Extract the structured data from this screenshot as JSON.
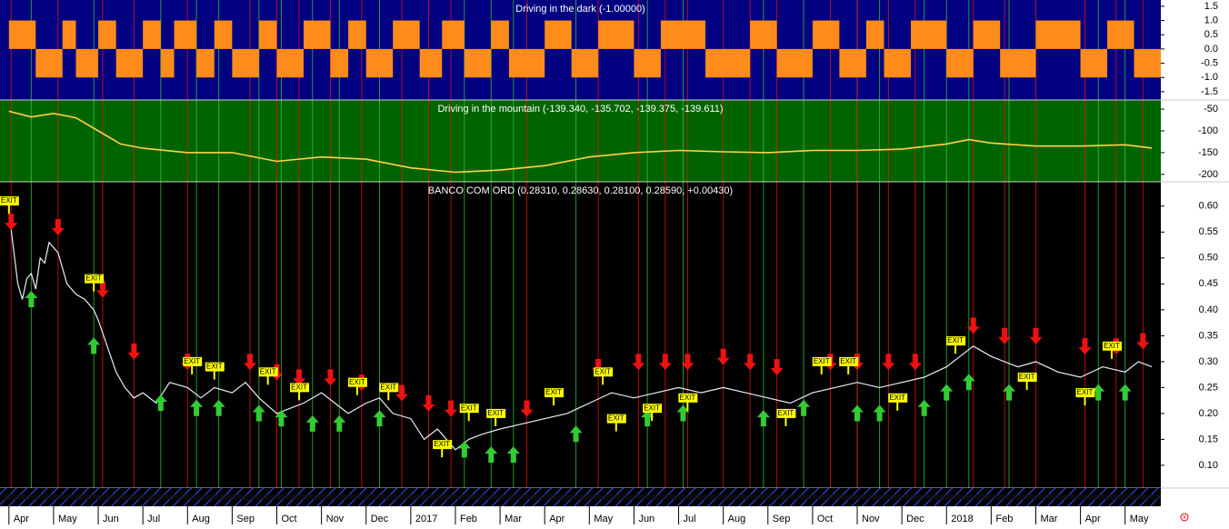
{
  "chart_data": [
    {
      "type": "step",
      "title": "Driving in the dark (-1.00000)",
      "background": "#000080",
      "color": "#ff8c1a",
      "xlim": [
        -0.2,
        25.8
      ],
      "ylim": [
        -1.79,
        1.72
      ],
      "yticks": [
        1.5,
        {
          "value": 1,
          "label": "1.0"
        },
        0.5,
        {
          "value": 0,
          "label": "0.0"
        },
        -0.5,
        {
          "value": -1,
          "label": "-1.0"
        },
        -1.5
      ],
      "x": [
        0,
        0.6,
        1.2,
        1.5,
        2.0,
        2.4,
        3.0,
        3.4,
        3.7,
        4.2,
        4.6,
        5.0,
        5.6,
        6.0,
        6.6,
        7.2,
        7.6,
        8.0,
        8.6,
        9.2,
        9.7,
        10.2,
        10.8,
        11.2,
        12.0,
        12.6,
        13.2,
        14.0,
        14.6,
        15.6,
        16.6,
        17.2,
        18.0,
        18.6,
        19.2,
        19.6,
        20.2,
        21.0,
        21.6,
        22.2,
        23.0,
        24.0,
        24.6,
        25.2
      ],
      "values": [
        1,
        -1,
        1,
        -1,
        1,
        -1,
        1,
        -1,
        1,
        -1,
        1,
        -1,
        1,
        -1,
        1,
        -1,
        1,
        -1,
        1,
        -1,
        1,
        -1,
        1,
        -1,
        1,
        -1,
        1,
        -1,
        1,
        -1,
        1,
        -1,
        1,
        -1,
        1,
        -1,
        1,
        -1,
        1,
        -1,
        1,
        -1,
        1,
        -1
      ]
    },
    {
      "type": "line",
      "title": "Driving in the mountain (-139.340, -135.702, -139.375, -139.611)",
      "background": "#006400",
      "color": "#ffd24d",
      "xlim": [
        -0.2,
        25.8
      ],
      "ylim": [
        -217,
        -29
      ],
      "yticks": [
        -50,
        -100,
        -150,
        -200
      ],
      "x": [
        0,
        0.5,
        1,
        1.5,
        2,
        2.5,
        3,
        4,
        5,
        6,
        7,
        8,
        9,
        10,
        11,
        12,
        13,
        14,
        15,
        16,
        17,
        18,
        19,
        20,
        21,
        21.5,
        22,
        23,
        24,
        25,
        25.6
      ],
      "values": [
        -55,
        -68,
        -60,
        -70,
        -100,
        -130,
        -140,
        -150,
        -150,
        -170,
        -160,
        -165,
        -185,
        -195,
        -190,
        -180,
        -160,
        -150,
        -145,
        -148,
        -150,
        -145,
        -145,
        -142,
        -130,
        -120,
        -128,
        -135,
        -135,
        -132,
        -139.6
      ]
    },
    {
      "type": "price",
      "title": "BANCO COM ORD (0.28310, 0.28630, 0.28100, 0.28590, +0.00430)",
      "background": "#000000",
      "color": "#e8eef8",
      "xlim": [
        -0.2,
        25.8
      ],
      "ylim": [
        0.056,
        0.647
      ],
      "yticks": [
        {
          "value": 0.6,
          "label": "0.60"
        },
        0.55,
        {
          "value": 0.5,
          "label": "0.50"
        },
        0.45,
        {
          "value": 0.4,
          "label": "0.40"
        },
        0.35,
        {
          "value": 0.3,
          "label": "0.30"
        },
        0.25,
        {
          "value": 0.2,
          "label": "0.20"
        },
        0.15,
        {
          "value": 0.1,
          "label": "0.10"
        }
      ],
      "xticks": [
        {
          "value": 0,
          "label": "Apr"
        },
        {
          "value": 1,
          "label": "May"
        },
        {
          "value": 2,
          "label": "Jun"
        },
        {
          "value": 3,
          "label": "Jul"
        },
        {
          "value": 4,
          "label": "Aug"
        },
        {
          "value": 5,
          "label": "Sep"
        },
        {
          "value": 6,
          "label": "Oct"
        },
        {
          "value": 7,
          "label": "Nov"
        },
        {
          "value": 8,
          "label": "Dec"
        },
        {
          "value": 9,
          "label": "2017"
        },
        {
          "value": 10,
          "label": "Feb"
        },
        {
          "value": 11,
          "label": "Mar"
        },
        {
          "value": 12,
          "label": "Apr"
        },
        {
          "value": 13,
          "label": "May"
        },
        {
          "value": 14,
          "label": "Jun"
        },
        {
          "value": 15,
          "label": "Jul"
        },
        {
          "value": 16,
          "label": "Aug"
        },
        {
          "value": 17,
          "label": "Sep"
        },
        {
          "value": 18,
          "label": "Oct"
        },
        {
          "value": 19,
          "label": "Nov"
        },
        {
          "value": 20,
          "label": "Dec"
        },
        {
          "value": 21,
          "label": "2018"
        },
        {
          "value": 22,
          "label": "Feb"
        },
        {
          "value": 23,
          "label": "Mar"
        },
        {
          "value": 24,
          "label": "Apr"
        },
        {
          "value": 25,
          "label": "May"
        }
      ],
      "x": [
        0,
        0.1,
        0.2,
        0.3,
        0.4,
        0.5,
        0.6,
        0.7,
        0.8,
        0.9,
        1.0,
        1.1,
        1.2,
        1.3,
        1.5,
        1.7,
        1.9,
        2.0,
        2.2,
        2.4,
        2.6,
        2.8,
        3.0,
        3.3,
        3.6,
        4.0,
        4.3,
        4.6,
        5.0,
        5.3,
        5.6,
        6.0,
        6.3,
        6.6,
        7.0,
        7.3,
        7.6,
        8.0,
        8.3,
        8.6,
        9.0,
        9.3,
        9.6,
        10.0,
        10.3,
        10.6,
        11.0,
        11.5,
        12.0,
        12.5,
        13.0,
        13.5,
        14.0,
        14.5,
        15.0,
        15.5,
        16.0,
        16.5,
        17.0,
        17.5,
        18.0,
        18.5,
        19.0,
        19.5,
        20.0,
        20.5,
        21.0,
        21.3,
        21.6,
        22.0,
        22.3,
        22.6,
        23.0,
        23.5,
        24.0,
        24.5,
        25.0,
        25.3,
        25.6
      ],
      "values": [
        0.59,
        0.52,
        0.45,
        0.42,
        0.46,
        0.47,
        0.44,
        0.5,
        0.49,
        0.53,
        0.52,
        0.51,
        0.48,
        0.45,
        0.43,
        0.42,
        0.4,
        0.38,
        0.33,
        0.28,
        0.25,
        0.23,
        0.24,
        0.22,
        0.26,
        0.25,
        0.23,
        0.25,
        0.24,
        0.26,
        0.23,
        0.2,
        0.21,
        0.22,
        0.24,
        0.22,
        0.2,
        0.22,
        0.23,
        0.2,
        0.19,
        0.15,
        0.17,
        0.13,
        0.15,
        0.16,
        0.17,
        0.18,
        0.19,
        0.2,
        0.22,
        0.24,
        0.23,
        0.24,
        0.25,
        0.24,
        0.25,
        0.24,
        0.23,
        0.22,
        0.24,
        0.25,
        0.26,
        0.25,
        0.26,
        0.27,
        0.29,
        0.31,
        0.33,
        0.31,
        0.3,
        0.29,
        0.3,
        0.28,
        0.27,
        0.29,
        0.28,
        0.3,
        0.29
      ],
      "signals": {
        "buy": {
          "color": "#33cc33",
          "x": [
            0.5,
            1.9,
            3.4,
            4.2,
            4.7,
            5.6,
            6.1,
            6.8,
            7.4,
            8.3,
            10.2,
            10.8,
            11.3,
            12.7,
            14.3,
            15.1,
            16.9,
            17.8,
            19.0,
            19.5,
            20.5,
            21.0,
            21.5,
            22.4,
            24.4,
            25.0
          ],
          "values": [
            0.44,
            0.35,
            0.24,
            0.23,
            0.23,
            0.22,
            0.21,
            0.2,
            0.2,
            0.21,
            0.15,
            0.14,
            0.14,
            0.18,
            0.21,
            0.22,
            0.21,
            0.23,
            0.22,
            0.22,
            0.23,
            0.26,
            0.28,
            0.26,
            0.26,
            0.26
          ]
        },
        "sell": {
          "color": "#ee1111",
          "x": [
            0.05,
            1.1,
            2.1,
            2.8,
            4.0,
            5.4,
            6.0,
            6.5,
            7.2,
            7.9,
            8.8,
            9.4,
            9.9,
            11.6,
            13.2,
            14.1,
            14.7,
            15.2,
            16.0,
            16.6,
            17.2,
            18.4,
            19.0,
            19.7,
            20.3,
            21.6,
            22.3,
            23.0,
            24.1,
            24.8,
            25.4
          ],
          "values": [
            0.55,
            0.54,
            0.42,
            0.3,
            0.28,
            0.28,
            0.26,
            0.25,
            0.25,
            0.24,
            0.22,
            0.2,
            0.19,
            0.19,
            0.27,
            0.28,
            0.28,
            0.28,
            0.29,
            0.28,
            0.27,
            0.28,
            0.28,
            0.28,
            0.28,
            0.35,
            0.33,
            0.33,
            0.31,
            0.31,
            0.32
          ]
        },
        "exit": {
          "color": "#ffff00",
          "label": "EXIT",
          "x": [
            0.0,
            1.9,
            4.1,
            4.6,
            5.8,
            6.5,
            7.8,
            8.5,
            9.7,
            10.3,
            10.9,
            12.2,
            13.3,
            13.6,
            14.4,
            15.2,
            17.4,
            18.2,
            18.8,
            19.9,
            21.2,
            22.8,
            24.1,
            24.7
          ],
          "values": [
            0.61,
            0.46,
            0.3,
            0.29,
            0.28,
            0.25,
            0.26,
            0.25,
            0.14,
            0.21,
            0.2,
            0.24,
            0.28,
            0.19,
            0.21,
            0.23,
            0.2,
            0.3,
            0.3,
            0.23,
            0.34,
            0.27,
            0.24,
            0.33
          ]
        }
      }
    }
  ]
}
